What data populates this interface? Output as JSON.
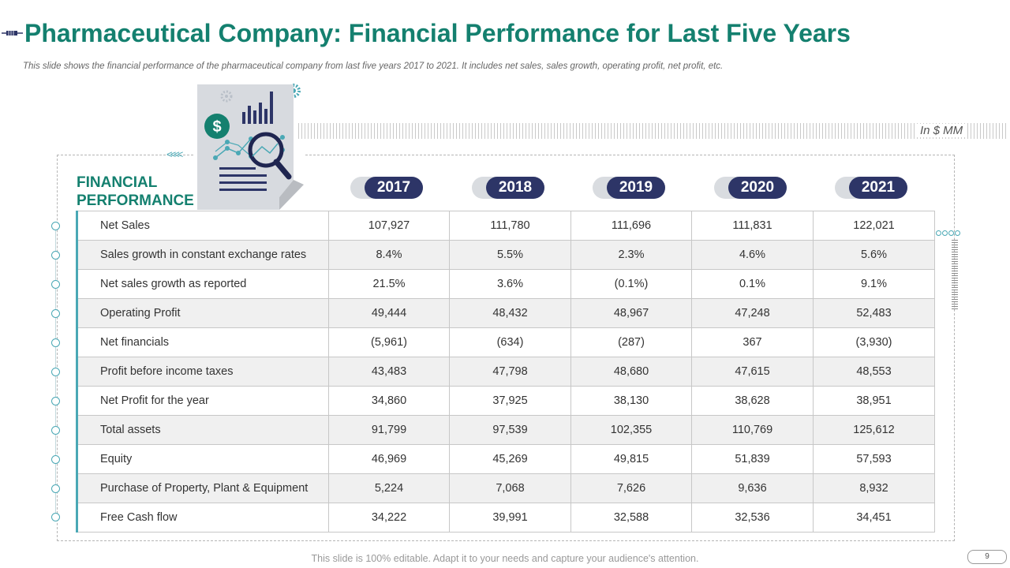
{
  "header": {
    "title": "Pharmaceutical Company: Financial Performance for Last Five Years",
    "subtitle": "This slide shows the financial performance of the pharmaceutical company from last five years 2017 to 2021. It includes net sales, sales growth, operating profit, net profit, etc."
  },
  "unit_label": "In $ MM",
  "section_label": "FINANCIAL PERFORMANCE",
  "illustration": {
    "currency_symbol": "$"
  },
  "years": [
    "2017",
    "2018",
    "2019",
    "2020",
    "2021"
  ],
  "rows": [
    {
      "label": "Net Sales",
      "values": [
        "107,927",
        "111,780",
        "111,696",
        "111,831",
        "122,021"
      ]
    },
    {
      "label": "Sales growth in constant exchange rates",
      "values": [
        "8.4%",
        "5.5%",
        "2.3%",
        "4.6%",
        "5.6%"
      ]
    },
    {
      "label": "Net sales growth as reported",
      "values": [
        "21.5%",
        "3.6%",
        "(0.1%)",
        "0.1%",
        "9.1%"
      ]
    },
    {
      "label": "Operating Profit",
      "values": [
        "49,444",
        "48,432",
        "48,967",
        "47,248",
        "52,483"
      ]
    },
    {
      "label": "Net financials",
      "values": [
        "(5,961)",
        "(634)",
        "(287)",
        "367",
        "(3,930)"
      ]
    },
    {
      "label": "Profit before income taxes",
      "values": [
        "43,483",
        "47,798",
        "48,680",
        "47,615",
        "48,553"
      ]
    },
    {
      "label": "Net Profit for the year",
      "values": [
        "34,860",
        "37,925",
        "38,130",
        "38,628",
        "38,951"
      ]
    },
    {
      "label": "Total assets",
      "values": [
        "91,799",
        "97,539",
        "102,355",
        "110,769",
        "125,612"
      ]
    },
    {
      "label": "Equity",
      "values": [
        "46,969",
        "45,269",
        "49,815",
        "51,839",
        "57,593"
      ]
    },
    {
      "label": "Purchase of Property, Plant & Equipment",
      "values": [
        "5,224",
        "7,068",
        "7,626",
        "9,636",
        "8,932"
      ]
    },
    {
      "label": "Free Cash flow",
      "values": [
        "34,222",
        "39,991",
        "32,588",
        "32,536",
        "34,451"
      ]
    }
  ],
  "footer": {
    "text": "This slide is 100% editable. Adapt it to your needs and capture your audience's attention.",
    "page_number": "9"
  },
  "colors": {
    "title": "#14806f",
    "year_pill": "#2d3567",
    "accent": "#4aa8b5"
  }
}
